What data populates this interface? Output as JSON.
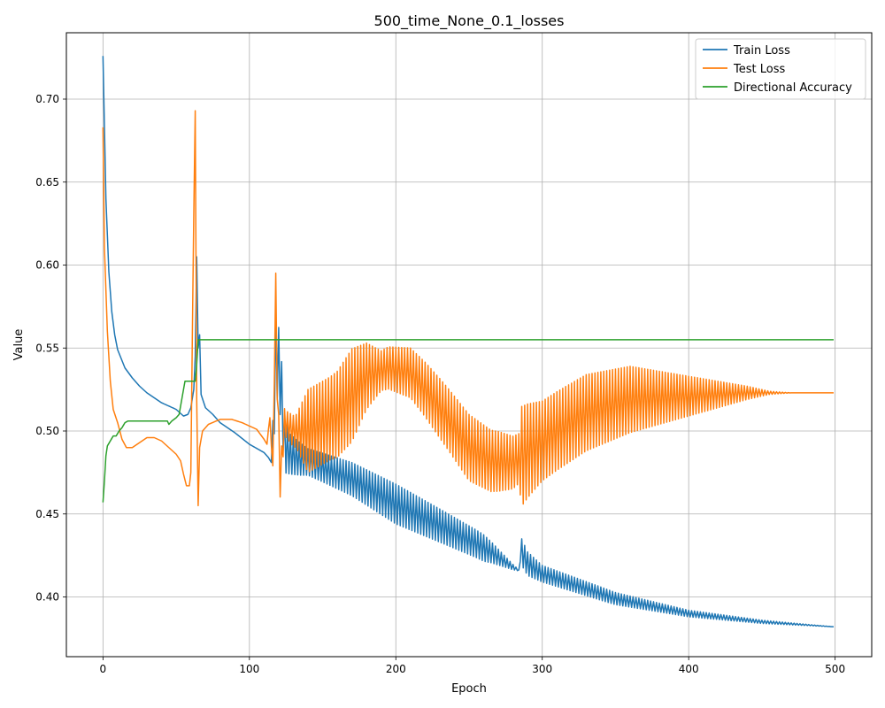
{
  "chart_data": {
    "type": "line",
    "title": "500_time_None_0.1_losses",
    "xlabel": "Epoch",
    "ylabel": "Value",
    "xlim": [
      -25,
      525
    ],
    "ylim": [
      0.364,
      0.74
    ],
    "xticks": [
      0,
      100,
      200,
      300,
      400,
      500
    ],
    "yticks": [
      0.4,
      0.45,
      0.5,
      0.55,
      0.6,
      0.65,
      0.7
    ],
    "ytick_labels": [
      "0.40",
      "0.45",
      "0.50",
      "0.55",
      "0.60",
      "0.65",
      "0.70"
    ],
    "grid": true,
    "legend_position": "top-right",
    "series": [
      {
        "name": "Train Loss",
        "color": "#1f77b4",
        "oscillation": [
          [
            0,
            0
          ],
          [
            115,
            0
          ],
          [
            118,
            0.025
          ],
          [
            128,
            0.012
          ],
          [
            140,
            0.008
          ],
          [
            200,
            0.012
          ],
          [
            260,
            0.008
          ],
          [
            285,
            0
          ],
          [
            286,
            0.008
          ],
          [
            300,
            0.005
          ],
          [
            340,
            0.004
          ],
          [
            400,
            0.002
          ],
          [
            450,
            0.001
          ],
          [
            499,
            0
          ]
        ],
        "points": [
          [
            0,
            0.726
          ],
          [
            2,
            0.64
          ],
          [
            4,
            0.596
          ],
          [
            6,
            0.572
          ],
          [
            8,
            0.558
          ],
          [
            10,
            0.549
          ],
          [
            15,
            0.538
          ],
          [
            20,
            0.532
          ],
          [
            25,
            0.527
          ],
          [
            30,
            0.523
          ],
          [
            35,
            0.52
          ],
          [
            40,
            0.517
          ],
          [
            45,
            0.515
          ],
          [
            50,
            0.513
          ],
          [
            55,
            0.509
          ],
          [
            58,
            0.51
          ],
          [
            60,
            0.514
          ],
          [
            62,
            0.525
          ],
          [
            63,
            0.545
          ],
          [
            64,
            0.605
          ],
          [
            65,
            0.55
          ],
          [
            66,
            0.558
          ],
          [
            67,
            0.522
          ],
          [
            70,
            0.514
          ],
          [
            75,
            0.51
          ],
          [
            80,
            0.505
          ],
          [
            90,
            0.499
          ],
          [
            100,
            0.492
          ],
          [
            110,
            0.487
          ],
          [
            113,
            0.484
          ],
          [
            115,
            0.481
          ],
          [
            117,
            0.515
          ],
          [
            118,
            0.546
          ],
          [
            120,
            0.54
          ],
          [
            122,
            0.522
          ],
          [
            124,
            0.492
          ],
          [
            128,
            0.486
          ],
          [
            135,
            0.483
          ],
          [
            150,
            0.478
          ],
          [
            170,
            0.471
          ],
          [
            200,
            0.456
          ],
          [
            230,
            0.443
          ],
          [
            255,
            0.432
          ],
          [
            265,
            0.427
          ],
          [
            280,
            0.418
          ],
          [
            284,
            0.416
          ],
          [
            286,
            0.427
          ],
          [
            290,
            0.42
          ],
          [
            300,
            0.414
          ],
          [
            320,
            0.408
          ],
          [
            350,
            0.399
          ],
          [
            400,
            0.39
          ],
          [
            450,
            0.385
          ],
          [
            499,
            0.382
          ]
        ]
      },
      {
        "name": "Test Loss",
        "color": "#ff7f0e",
        "oscillation": [
          [
            0,
            0
          ],
          [
            112,
            0
          ],
          [
            116,
            0.012
          ],
          [
            125,
            0.008
          ],
          [
            132,
            0.01
          ],
          [
            140,
            0.025
          ],
          [
            155,
            0.025
          ],
          [
            170,
            0.028
          ],
          [
            190,
            0.012
          ],
          [
            210,
            0.015
          ],
          [
            230,
            0.018
          ],
          [
            250,
            0.02
          ],
          [
            270,
            0.018
          ],
          [
            284,
            0.015
          ],
          [
            286,
            0.03
          ],
          [
            300,
            0.024
          ],
          [
            330,
            0.023
          ],
          [
            360,
            0.02
          ],
          [
            400,
            0.012
          ],
          [
            440,
            0.004
          ],
          [
            455,
            0.001
          ],
          [
            470,
            0
          ],
          [
            499,
            0
          ]
        ],
        "points": [
          [
            0,
            0.683
          ],
          [
            1,
            0.61
          ],
          [
            3,
            0.56
          ],
          [
            5,
            0.53
          ],
          [
            7,
            0.513
          ],
          [
            10,
            0.505
          ],
          [
            13,
            0.495
          ],
          [
            16,
            0.49
          ],
          [
            20,
            0.49
          ],
          [
            25,
            0.493
          ],
          [
            30,
            0.496
          ],
          [
            35,
            0.496
          ],
          [
            40,
            0.494
          ],
          [
            45,
            0.49
          ],
          [
            50,
            0.486
          ],
          [
            53,
            0.482
          ],
          [
            55,
            0.474
          ],
          [
            57,
            0.467
          ],
          [
            59,
            0.467
          ],
          [
            60,
            0.475
          ],
          [
            61,
            0.555
          ],
          [
            62,
            0.63
          ],
          [
            63,
            0.693
          ],
          [
            64,
            0.52
          ],
          [
            65,
            0.455
          ],
          [
            66,
            0.49
          ],
          [
            68,
            0.5
          ],
          [
            72,
            0.504
          ],
          [
            80,
            0.507
          ],
          [
            88,
            0.507
          ],
          [
            95,
            0.505
          ],
          [
            105,
            0.501
          ],
          [
            110,
            0.495
          ],
          [
            112,
            0.492
          ],
          [
            113,
            0.504
          ],
          [
            115,
            0.5
          ],
          [
            116,
            0.467
          ],
          [
            117,
            0.54
          ],
          [
            118,
            0.584
          ],
          [
            119,
            0.53
          ],
          [
            121,
            0.47
          ],
          [
            124,
            0.505
          ],
          [
            130,
            0.5
          ],
          [
            140,
            0.5
          ],
          [
            160,
            0.51
          ],
          [
            180,
            0.533
          ],
          [
            195,
            0.538
          ],
          [
            210,
            0.535
          ],
          [
            220,
            0.525
          ],
          [
            235,
            0.508
          ],
          [
            250,
            0.49
          ],
          [
            265,
            0.482
          ],
          [
            280,
            0.481
          ],
          [
            285,
            0.484
          ],
          [
            290,
            0.488
          ],
          [
            310,
            0.5
          ],
          [
            330,
            0.511
          ],
          [
            360,
            0.519
          ],
          [
            400,
            0.521
          ],
          [
            440,
            0.523
          ],
          [
            470,
            0.523
          ],
          [
            499,
            0.523
          ]
        ]
      },
      {
        "name": "Directional Accuracy",
        "color": "#2ca02c",
        "oscillation": [
          [
            0,
            0
          ],
          [
            499,
            0
          ]
        ],
        "points": [
          [
            0,
            0.457
          ],
          [
            1,
            0.47
          ],
          [
            2,
            0.485
          ],
          [
            3,
            0.491
          ],
          [
            5,
            0.494
          ],
          [
            7,
            0.497
          ],
          [
            9,
            0.497
          ],
          [
            11,
            0.5
          ],
          [
            13,
            0.502
          ],
          [
            15,
            0.505
          ],
          [
            17,
            0.506
          ],
          [
            42,
            0.506
          ],
          [
            44,
            0.506
          ],
          [
            45,
            0.504
          ],
          [
            47,
            0.506
          ],
          [
            50,
            0.508
          ],
          [
            52,
            0.51
          ],
          [
            54,
            0.52
          ],
          [
            56,
            0.53
          ],
          [
            63,
            0.53
          ],
          [
            64,
            0.54
          ],
          [
            65,
            0.555
          ],
          [
            499,
            0.555
          ]
        ]
      }
    ]
  }
}
